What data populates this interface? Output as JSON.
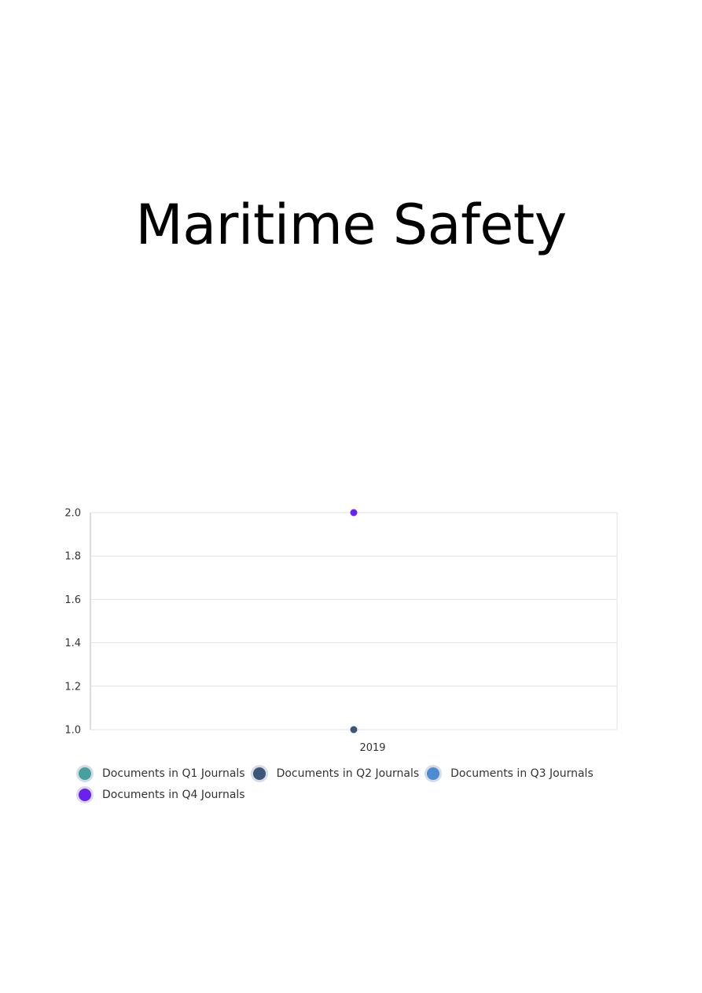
{
  "page": {
    "title": "Maritime Safety"
  },
  "chart_data": {
    "type": "scatter",
    "title": "",
    "xlabel": "",
    "ylabel": "",
    "categories": [
      "2019"
    ],
    "ylim": [
      1.0,
      2.0
    ],
    "yticks": [
      "1.0",
      "1.2",
      "1.4",
      "1.6",
      "1.8",
      "2.0"
    ],
    "grid": true,
    "legend_position": "bottom-left",
    "series": [
      {
        "name": "Documents in Q1 Journals",
        "color": "#46a09b",
        "values": [
          null
        ]
      },
      {
        "name": "Documents in Q2 Journals",
        "color": "#3c5677",
        "values": [
          1
        ]
      },
      {
        "name": "Documents in Q3 Journals",
        "color": "#4a8ccf",
        "values": [
          null
        ]
      },
      {
        "name": "Documents in Q4 Journals",
        "color": "#6b1ff0",
        "values": [
          2
        ]
      }
    ]
  }
}
